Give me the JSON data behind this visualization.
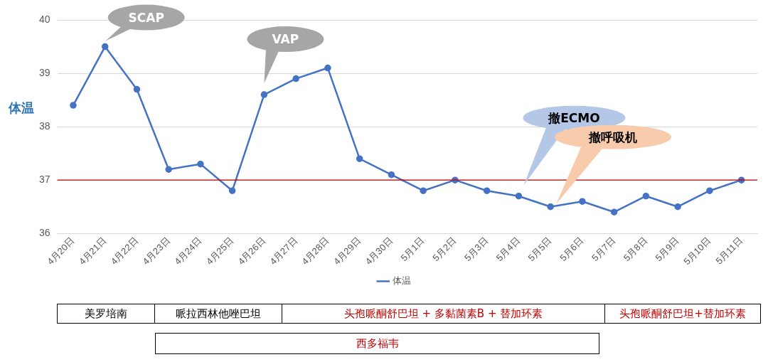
{
  "chart_data": {
    "type": "line",
    "ylabel": "体温",
    "categories": [
      "4月20日",
      "4月21日",
      "4月22日",
      "4月23日",
      "4月24日",
      "4月25日",
      "4月26日",
      "4月27日",
      "4月28日",
      "4月29日",
      "4月30日",
      "5月1日",
      "5月2日",
      "5月3日",
      "5月4日",
      "5月5日",
      "5月6日",
      "5月7日",
      "5月8日",
      "5月9日",
      "5月10日",
      "5月11日"
    ],
    "series": [
      {
        "name": "体温",
        "color": "#4472c4",
        "values": [
          38.4,
          39.5,
          38.7,
          37.2,
          37.3,
          36.8,
          38.6,
          38.9,
          39.1,
          37.4,
          37.1,
          36.8,
          37.0,
          36.8,
          36.7,
          36.5,
          36.6,
          36.4,
          36.7,
          36.5,
          36.8,
          37.0
        ]
      }
    ],
    "ylim": [
      36,
      40
    ],
    "yticks": [
      36,
      37,
      38,
      39,
      40
    ],
    "grid": "y",
    "legend": "bottom",
    "marker": "circle",
    "line_style": "solid",
    "ref_lines": [
      {
        "axis": "y",
        "value": 37,
        "color": "#c00000"
      }
    ],
    "annotations": [
      "SCAP",
      "VAP",
      "撤ECMO",
      "撤呼吸机",
      "美罗培南",
      "哌拉西林他唑巴坦",
      "头孢哌酮舒巴坦 + 多黏菌素B + 替加环素",
      "头孢哌酮舒巴坦+替加环素",
      "西多福韦"
    ]
  }
}
